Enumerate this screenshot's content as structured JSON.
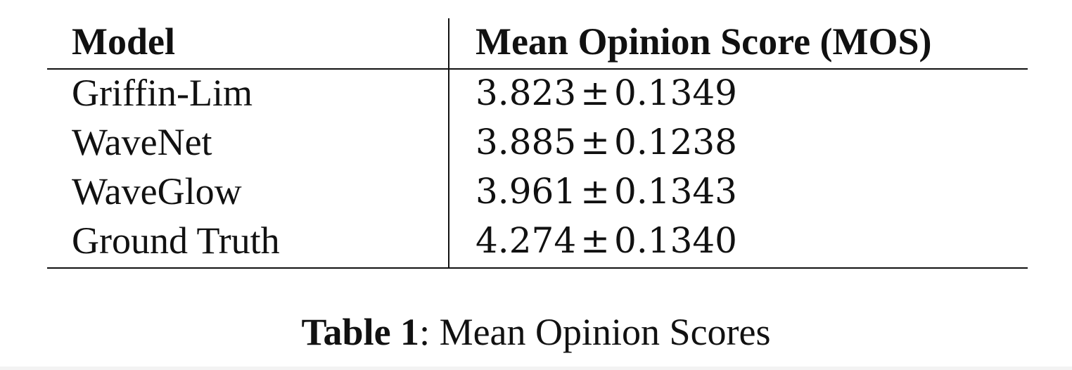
{
  "table": {
    "headers": [
      "Model",
      "Mean Opinion Score (MOS)"
    ],
    "rows": [
      {
        "model": "Griffin-Lim",
        "mean": "3.823",
        "pm": "±",
        "std": "0.1349"
      },
      {
        "model": "WaveNet",
        "mean": "3.885",
        "pm": "±",
        "std": "0.1238"
      },
      {
        "model": "WaveGlow",
        "mean": "3.961",
        "pm": "±",
        "std": "0.1343"
      },
      {
        "model": "Ground Truth",
        "mean": "4.274",
        "pm": "±",
        "std": "0.1340"
      }
    ]
  },
  "caption": {
    "label": "Table 1",
    "separator": ":",
    "text": " Mean Opinion Scores"
  }
}
